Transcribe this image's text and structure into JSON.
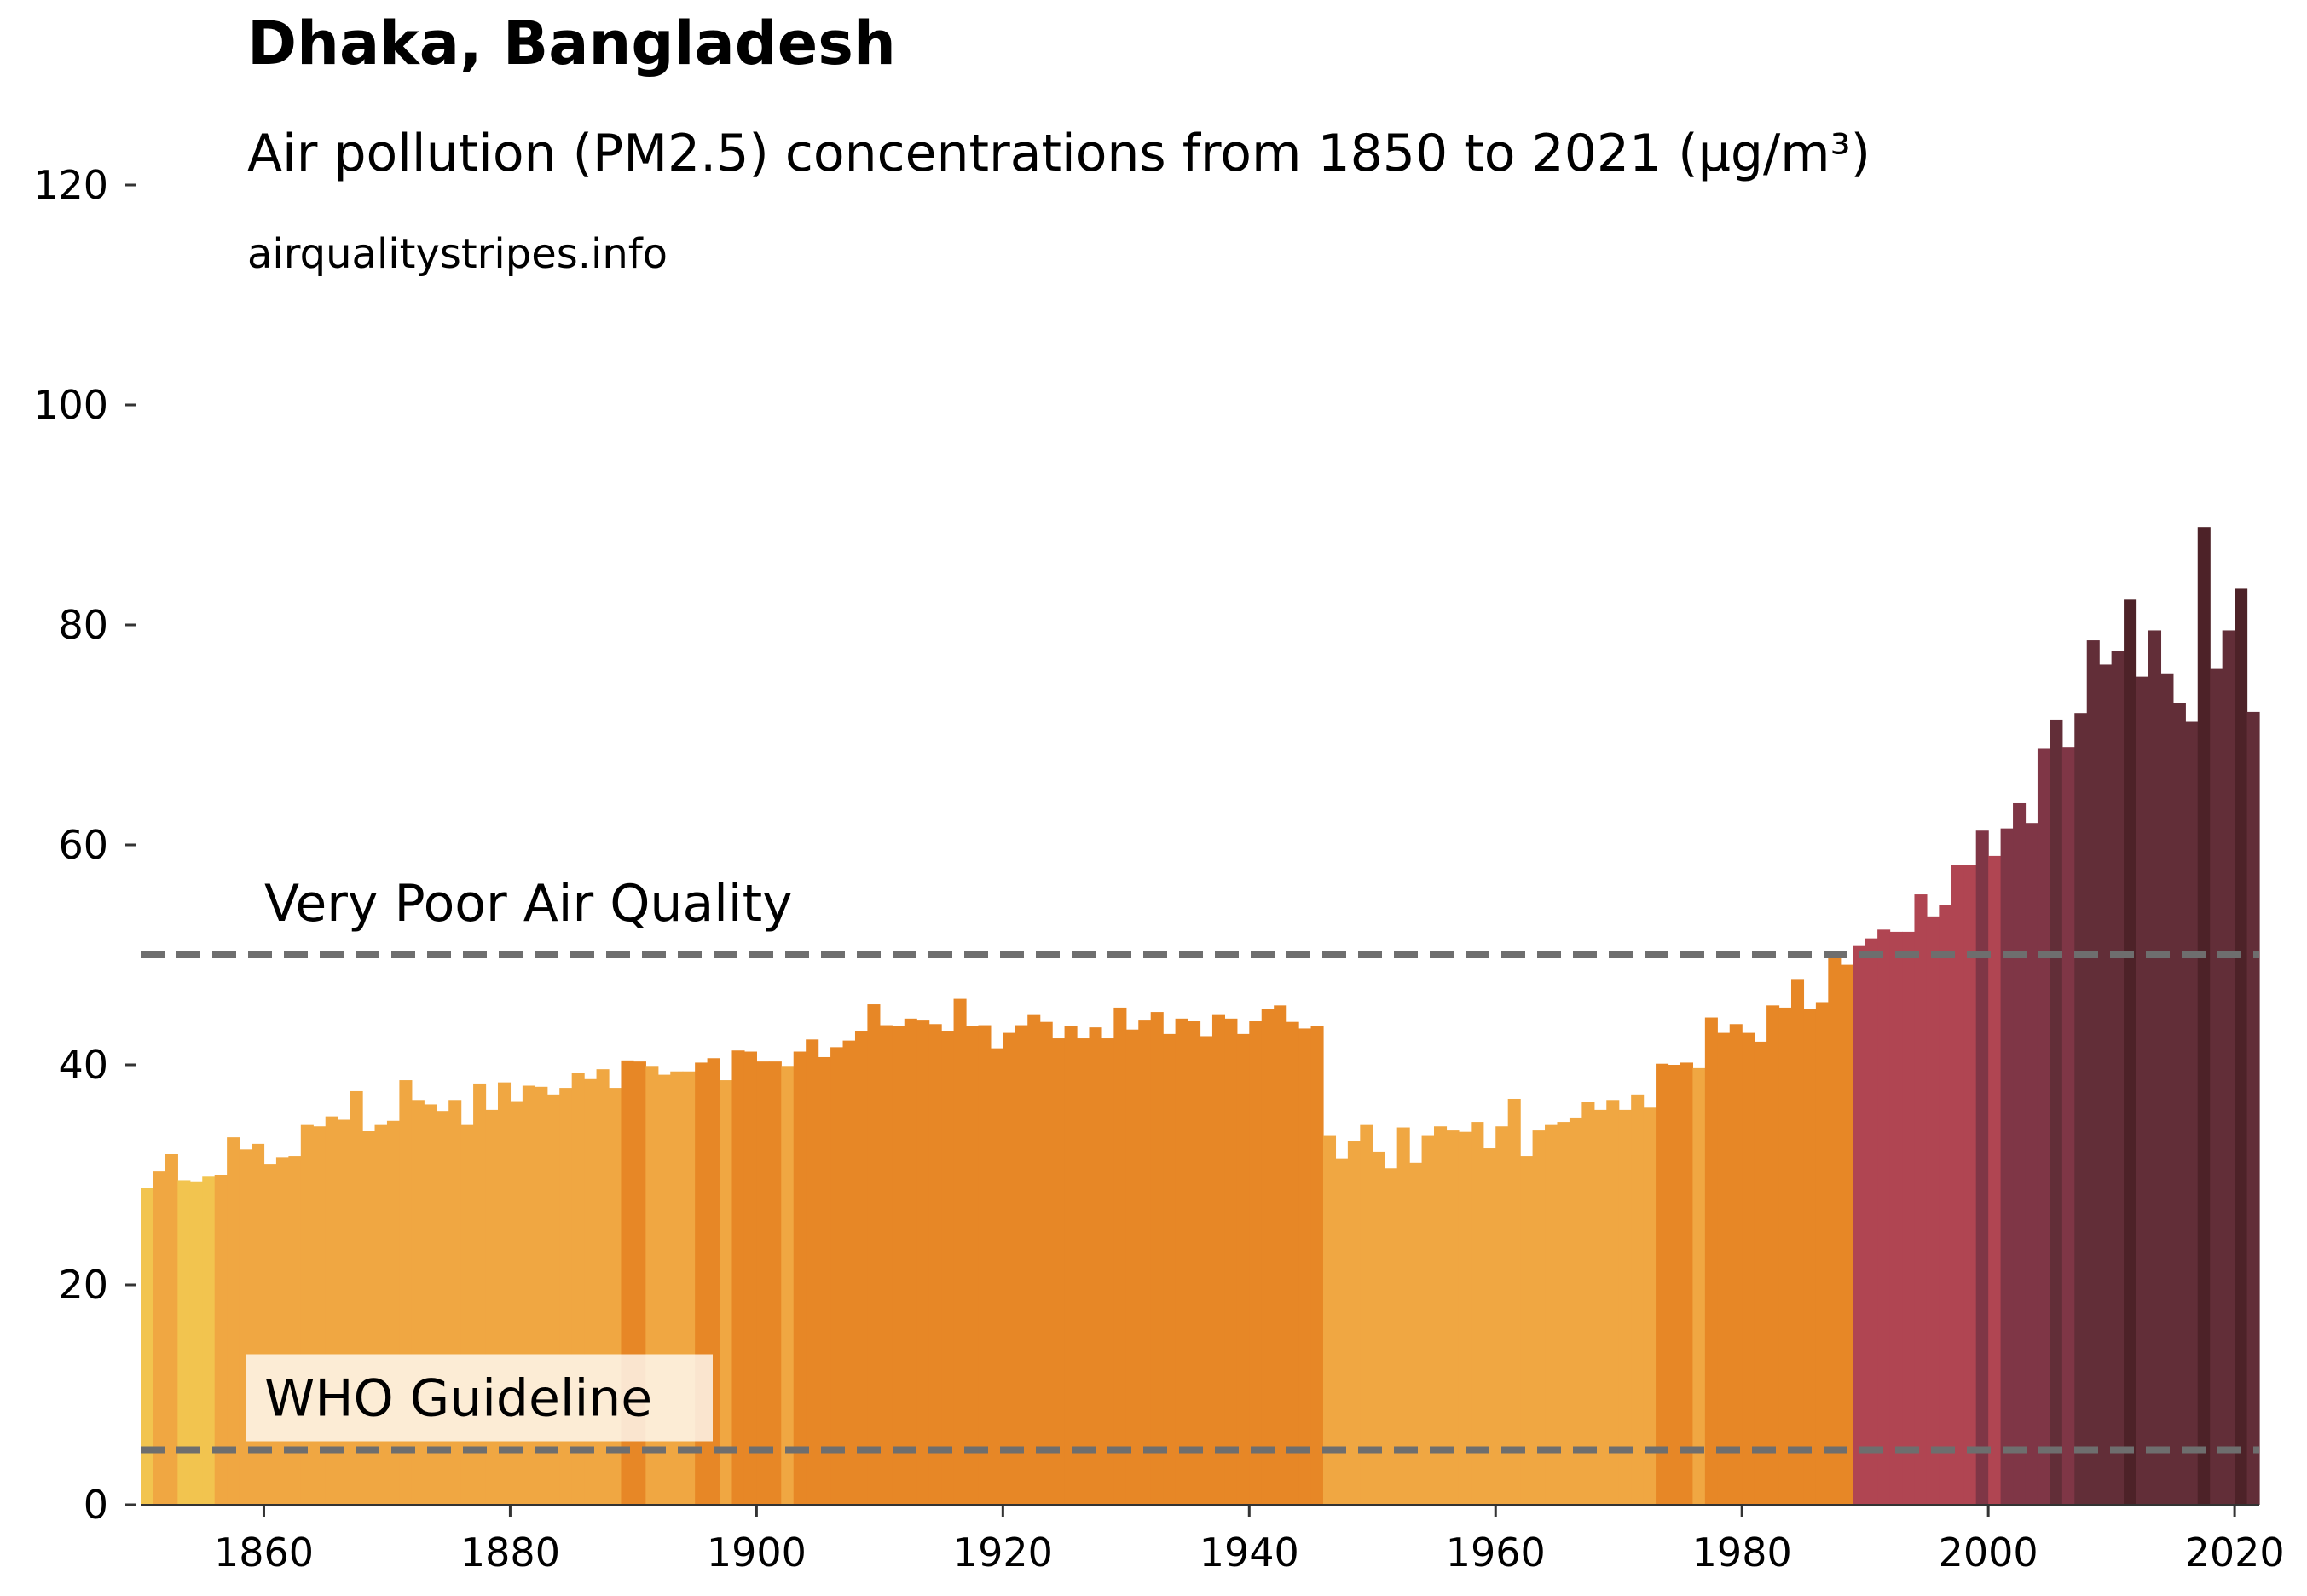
{
  "header": {
    "title": "Dhaka, Bangladesh",
    "subtitle": "Air pollution (PM2.5) concentrations from 1850 to 2021 (µg/m³)",
    "source": "airqualitystripes.info"
  },
  "chart_data": {
    "type": "bar",
    "xlim": [
      1850,
      2022
    ],
    "ylim": [
      0,
      125
    ],
    "xticks": [
      1860,
      1880,
      1900,
      1920,
      1940,
      1960,
      1980,
      2000,
      2020
    ],
    "yticks": [
      0,
      20,
      40,
      60,
      80,
      100,
      120
    ],
    "grid": false,
    "x": [
      1850,
      1851,
      1852,
      1853,
      1854,
      1855,
      1856,
      1857,
      1858,
      1859,
      1860,
      1861,
      1862,
      1863,
      1864,
      1865,
      1866,
      1867,
      1868,
      1869,
      1870,
      1871,
      1872,
      1873,
      1874,
      1875,
      1876,
      1877,
      1878,
      1879,
      1880,
      1881,
      1882,
      1883,
      1884,
      1885,
      1886,
      1887,
      1888,
      1889,
      1890,
      1891,
      1892,
      1893,
      1894,
      1895,
      1896,
      1897,
      1898,
      1899,
      1900,
      1901,
      1902,
      1903,
      1904,
      1905,
      1906,
      1907,
      1908,
      1909,
      1910,
      1911,
      1912,
      1913,
      1914,
      1915,
      1916,
      1917,
      1918,
      1919,
      1920,
      1921,
      1922,
      1923,
      1924,
      1925,
      1926,
      1927,
      1928,
      1929,
      1930,
      1931,
      1932,
      1933,
      1934,
      1935,
      1936,
      1937,
      1938,
      1939,
      1940,
      1941,
      1942,
      1943,
      1944,
      1945,
      1946,
      1947,
      1948,
      1949,
      1950,
      1951,
      1952,
      1953,
      1954,
      1955,
      1956,
      1957,
      1958,
      1959,
      1960,
      1961,
      1962,
      1963,
      1964,
      1965,
      1966,
      1967,
      1968,
      1969,
      1970,
      1971,
      1972,
      1973,
      1974,
      1975,
      1976,
      1977,
      1978,
      1979,
      1980,
      1981,
      1982,
      1983,
      1984,
      1985,
      1986,
      1987,
      1988,
      1989,
      1990,
      1991,
      1992,
      1993,
      1994,
      1995,
      1996,
      1997,
      1998,
      1999,
      2000,
      2001,
      2002,
      2003,
      2004,
      2005,
      2006,
      2007,
      2008,
      2009,
      2010,
      2011,
      2012,
      2013,
      2014,
      2015,
      2016,
      2017,
      2018,
      2019,
      2020,
      2021
    ],
    "values": [
      28.8,
      30.3,
      31.9,
      29.5,
      29.4,
      29.9,
      30.0,
      33.4,
      32.3,
      32.8,
      31.0,
      31.6,
      31.7,
      34.6,
      34.4,
      35.3,
      35.0,
      37.6,
      34.0,
      34.6,
      34.9,
      38.6,
      36.8,
      36.4,
      35.8,
      36.8,
      34.6,
      38.3,
      35.9,
      38.4,
      36.7,
      38.1,
      38.0,
      37.3,
      37.9,
      39.3,
      38.7,
      39.6,
      37.9,
      40.4,
      40.3,
      39.9,
      39.1,
      39.4,
      39.4,
      40.2,
      40.6,
      38.6,
      41.3,
      41.2,
      40.3,
      40.3,
      39.9,
      41.2,
      42.3,
      40.7,
      41.6,
      42.2,
      43.1,
      45.5,
      43.6,
      43.5,
      44.2,
      44.1,
      43.7,
      43.1,
      46.0,
      43.5,
      43.6,
      41.5,
      42.9,
      43.6,
      44.6,
      43.9,
      42.4,
      43.5,
      42.4,
      43.4,
      42.4,
      45.2,
      43.2,
      44.1,
      44.8,
      42.8,
      44.2,
      44.0,
      42.6,
      44.6,
      44.2,
      42.8,
      44.0,
      45.1,
      45.4,
      43.9,
      43.3,
      43.5,
      33.6,
      31.5,
      33.1,
      34.6,
      32.1,
      30.6,
      34.3,
      31.1,
      33.6,
      34.4,
      34.1,
      33.9,
      34.8,
      32.4,
      34.4,
      36.9,
      31.7,
      34.1,
      34.6,
      34.8,
      35.2,
      36.6,
      35.9,
      36.8,
      35.9,
      37.3,
      36.1,
      40.1,
      40.0,
      40.2,
      39.7,
      44.3,
      42.9,
      43.7,
      42.9,
      42.1,
      45.4,
      45.2,
      47.8,
      45.1,
      45.7,
      49.8,
      49.1,
      50.8,
      51.5,
      52.3,
      52.1,
      52.1,
      55.5,
      53.5,
      54.5,
      58.2,
      58.2,
      61.3,
      59.0,
      61.5,
      63.8,
      62.0,
      68.8,
      71.4,
      68.9,
      72.0,
      78.6,
      76.4,
      77.6,
      82.3,
      75.3,
      79.5,
      75.6,
      72.9,
      71.2,
      88.9,
      76.0,
      79.5,
      83.3,
      72.1
    ],
    "thresholds": [
      {
        "label": "Very Poor Air Quality",
        "value": 50
      },
      {
        "label": "WHO Guideline",
        "value": 5
      }
    ],
    "colors": {
      "yellow": "#f2c44f",
      "light_orange": "#f0a742",
      "orange": "#e78726",
      "red": "#b04552",
      "plum": "#7f3646",
      "dark": "#622e38",
      "darkest": "#4d2228",
      "threshold_line": "#6e6e6e",
      "axis": "#333333"
    }
  }
}
